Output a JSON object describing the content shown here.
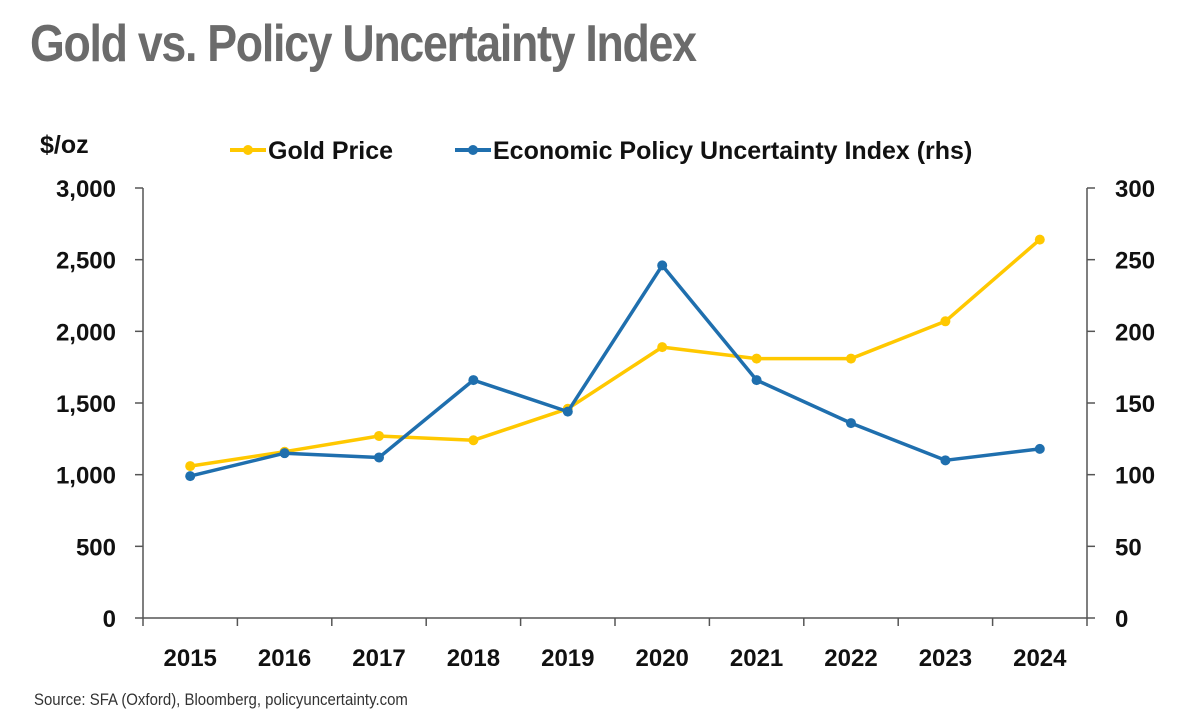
{
  "title": "Gold vs. Policy Uncertainty Index",
  "source": "Source: SFA (Oxford), Bloomberg, policyuncertainty.com",
  "colors": {
    "gold": "#FFC800",
    "epu": "#1F6FAE",
    "axis": "#555555"
  },
  "chart_data": {
    "type": "line",
    "x": [
      "2015",
      "2016",
      "2017",
      "2018",
      "2019",
      "2020",
      "2021",
      "2022",
      "2023",
      "2024"
    ],
    "series": [
      {
        "name": "Gold Price",
        "axis": "left",
        "color": "#FFC800",
        "values": [
          1060,
          1160,
          1270,
          1240,
          1460,
          1890,
          1810,
          1810,
          2070,
          2640
        ]
      },
      {
        "name": "Economic Policy Uncertainty Index (rhs)",
        "axis": "right",
        "color": "#1F6FAE",
        "values": [
          99,
          115,
          112,
          166,
          144,
          246,
          166,
          136,
          110,
          118
        ]
      }
    ],
    "y_left": {
      "label": "$/oz",
      "ticks": [
        "0",
        "500",
        "1,000",
        "1,500",
        "2,000",
        "2,500",
        "3,000"
      ],
      "range": [
        0,
        3000
      ]
    },
    "y_right": {
      "ticks": [
        "0",
        "50",
        "100",
        "150",
        "200",
        "250",
        "300"
      ],
      "range": [
        0,
        300
      ]
    },
    "grid": false,
    "legend": "top"
  }
}
